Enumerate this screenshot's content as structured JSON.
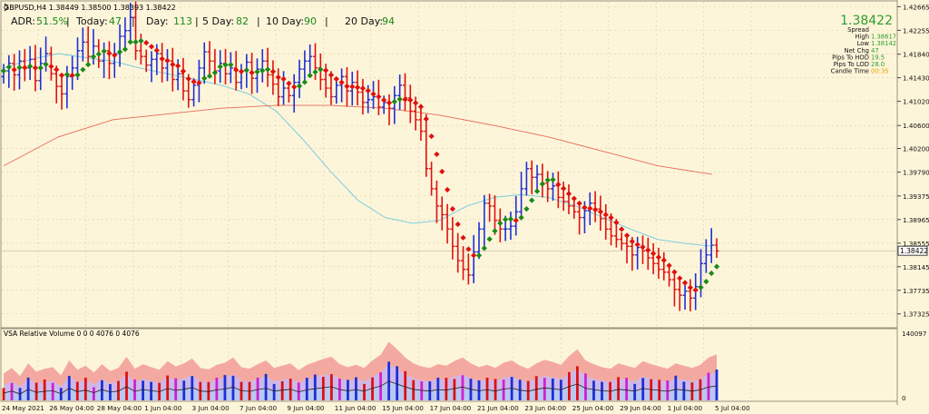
{
  "header": {
    "symbol_line": "GBPUSD,H4  1.38449 1.38500 1.38393 1.38422"
  },
  "adr_bar": [
    {
      "label": "ADR:",
      "value": "51.5%"
    },
    {
      "label": "Today:",
      "value": "47"
    },
    {
      "label": "Day:",
      "value": "113"
    },
    {
      "label": "5 Day:",
      "value": "82"
    },
    {
      "label": "10 Day:",
      "value": "90"
    },
    {
      "label": "20 Day:",
      "value": "94"
    }
  ],
  "info_panel": {
    "price": "1.38422",
    "rows": [
      {
        "label": "Spread",
        "value": "",
        "color": "#2e9e2e"
      },
      {
        "label": "High",
        "value": "1.38617",
        "color": "#2e9e2e"
      },
      {
        "label": "Low",
        "value": "1.38142",
        "color": "#2e9e2e"
      },
      {
        "label": "Net Chg",
        "value": "47",
        "color": "#2e9e2e"
      },
      {
        "label": "Pips To HOD",
        "value": "19.5",
        "color": "#2e9e2e"
      },
      {
        "label": "Pips To LOD",
        "value": "28.0",
        "color": "#2e9e2e"
      },
      {
        "label": "Candle Time",
        "value": "00:35",
        "color": "#e6a400"
      }
    ]
  },
  "colors": {
    "background": "#fdf5d9",
    "up_bar": "#1f2fd6",
    "down_bar": "#e01010",
    "ma_fast": "#6ec9e0",
    "ma_slow": "#e86b5a",
    "trend_up": "#1a8a1a",
    "trend_down": "#e01010",
    "price_box": "#2e9e2e",
    "grid": "#d8cfa8"
  },
  "chart_data": [
    {
      "type": "line",
      "title": "GBPUSD,H4",
      "ylim": [
        1.371,
        1.4275
      ],
      "y_ticks": [
        "1.42665",
        "1.42255",
        "1.41840",
        "1.41430",
        "1.41020",
        "1.40600",
        "1.40200",
        "1.39790",
        "1.39375",
        "1.38965",
        "1.38555",
        "1.38145",
        "1.37735",
        "1.37325"
      ],
      "x_ticks": [
        "24 May 2021",
        "26 May 04:00",
        "28 May 04:00",
        "1 Jun 04:00",
        "3 Jun 04:00",
        "7 Jun 04:00",
        "9 Jun 04:00",
        "11 Jun 04:00",
        "15 Jun 04:00",
        "17 Jun 04:00",
        "21 Jun 04:00",
        "23 Jun 04:00",
        "25 Jun 04:00",
        "29 Jun 04:00",
        "1 Jul 04:00",
        "5 Jul 04:00"
      ],
      "current_price": 1.38422,
      "series": [
        {
          "name": "",
          "role": "bars",
          "values": [
            1.4155,
            1.4168,
            1.4148,
            1.4172,
            1.416,
            1.4175,
            1.4138,
            1.4168,
            1.4185,
            1.415,
            1.4128,
            1.4115,
            1.4145,
            1.416,
            1.419,
            1.4205,
            1.418,
            1.4198,
            1.4172,
            1.419,
            1.4168,
            1.4185,
            1.4215,
            1.4225,
            1.4248,
            1.419,
            1.418,
            1.4165,
            1.4175,
            1.4185,
            1.416,
            1.4172,
            1.414,
            1.415,
            1.412,
            1.4105,
            1.413,
            1.416,
            1.4188,
            1.4172,
            1.4155,
            1.4168,
            1.415,
            1.416,
            1.4135,
            1.4155,
            1.417,
            1.4142,
            1.4158,
            1.4172,
            1.4148,
            1.4132,
            1.411,
            1.4125,
            1.4112,
            1.4135,
            1.4158,
            1.4172,
            1.418,
            1.416,
            1.414,
            1.4125,
            1.411,
            1.413,
            1.4145,
            1.412,
            1.4135,
            1.4118,
            1.41,
            1.4105,
            1.411,
            1.4092,
            1.41,
            1.409,
            1.4112,
            1.413,
            1.4108,
            1.4085,
            1.407,
            1.405,
            1.3985,
            1.395,
            1.392,
            1.3905,
            1.388,
            1.385,
            1.3825,
            1.381,
            1.38,
            1.384,
            1.388,
            1.3925,
            1.392,
            1.3895,
            1.388,
            1.388,
            1.3885,
            1.391,
            1.395,
            1.3985,
            1.397,
            1.3975,
            1.396,
            1.395,
            1.3955,
            1.3935,
            1.3928,
            1.392,
            1.391,
            1.39,
            1.3912,
            1.3925,
            1.3915,
            1.3898,
            1.388,
            1.3868,
            1.3862,
            1.3855,
            1.385,
            1.3835,
            1.3848,
            1.3842,
            1.383,
            1.382,
            1.381,
            1.3805,
            1.3792,
            1.3775,
            1.3765,
            1.3772,
            1.376,
            1.378,
            1.382,
            1.3835,
            1.3852,
            1.3842
          ]
        },
        {
          "name": "",
          "role": "ma_fast",
          "values": [
            1.416,
            1.4175,
            1.4185,
            1.4178,
            1.4172,
            1.416,
            1.415,
            1.414,
            1.413,
            1.4115,
            1.4085,
            1.4035,
            1.398,
            1.393,
            1.39,
            1.389,
            1.3895,
            1.392,
            1.3935,
            1.394,
            1.3935,
            1.392,
            1.39,
            1.388,
            1.3862,
            1.3855,
            1.385
          ]
        },
        {
          "name": "",
          "role": "ma_slow",
          "values": [
            1.399,
            1.404,
            1.407,
            1.408,
            1.409,
            1.4095,
            1.4095,
            1.409,
            1.4078,
            1.406,
            1.404,
            1.4015,
            1.399,
            1.3975
          ]
        }
      ]
    },
    {
      "type": "bar",
      "title": "VSA Relative Volume 0 0 0 4076 0 4076",
      "ylim": [
        0,
        140097
      ],
      "y_ticks": [
        "140097",
        "0"
      ],
      "values": [
        45,
        60,
        38,
        72,
        50,
        58,
        62,
        40,
        80,
        55,
        66,
        48,
        70,
        52,
        60,
        90,
        58,
        70,
        62,
        55,
        78,
        64,
        72,
        85,
        60,
        56,
        68,
        74,
        88,
        62,
        58,
        70,
        80,
        60,
        66,
        72,
        54,
        68,
        76,
        84,
        90,
        70,
        62,
        68,
        60,
        80,
        95,
        130,
        110,
        88,
        72,
        64,
        60,
        70,
        66,
        78,
        88,
        72,
        62,
        68,
        60,
        74,
        80,
        66,
        58,
        72,
        82,
        76,
        68,
        92,
        110,
        80,
        70,
        62,
        58,
        72,
        66,
        60,
        78,
        70,
        64,
        58,
        72,
        66,
        60,
        68,
        88,
        96
      ]
    }
  ]
}
